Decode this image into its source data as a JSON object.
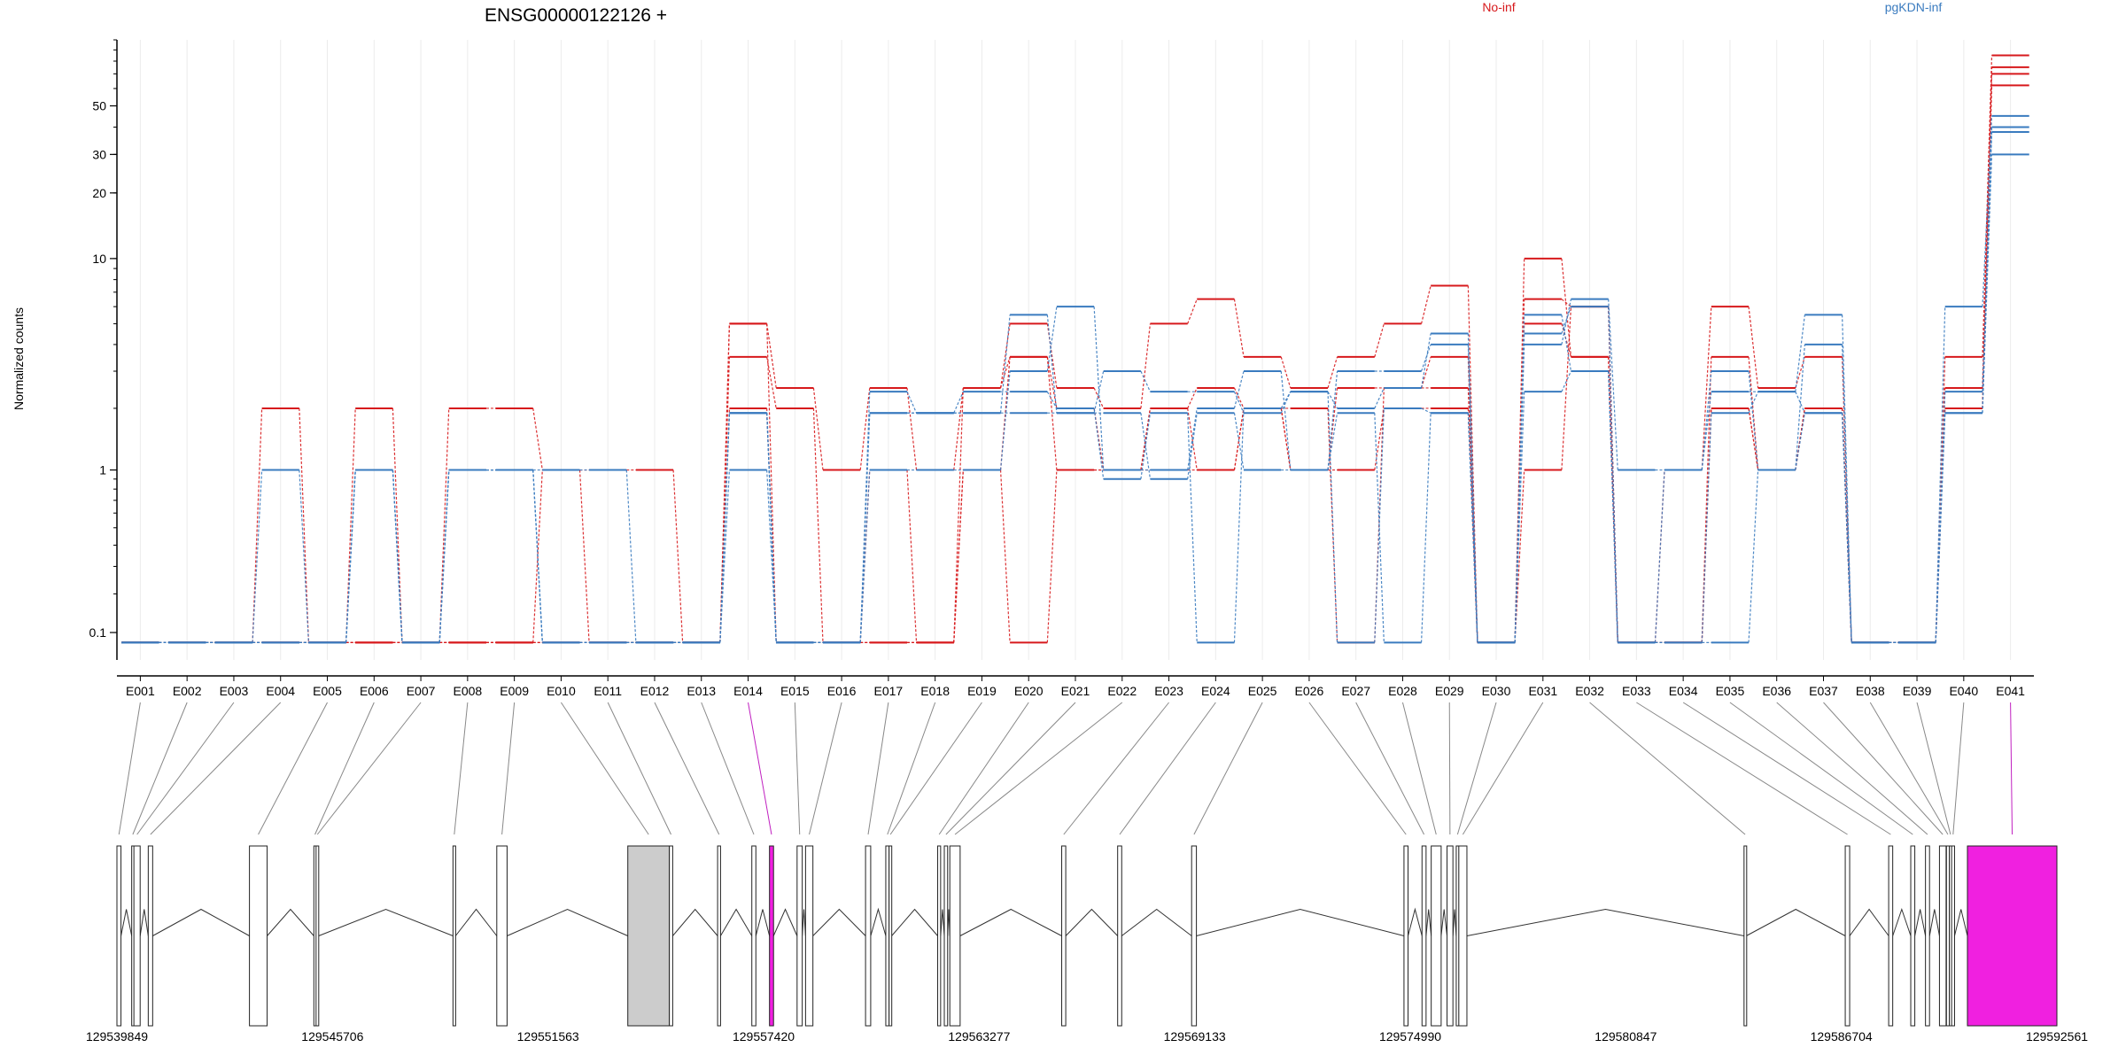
{
  "chart_data": {
    "type": "line",
    "title": "ENSG00000122126 +",
    "ylabel": "Normalized counts",
    "yscale": "log(x+0.1)",
    "ylim": [
      0.05,
      100
    ],
    "yticks": [
      0.1,
      1,
      10,
      20,
      30,
      50
    ],
    "ytick_labels": [
      "0.1",
      "1",
      "10",
      "20",
      "30",
      "50"
    ],
    "x_exons": [
      "E001",
      "E002",
      "E003",
      "E004",
      "E005",
      "E006",
      "E007",
      "E008",
      "E009",
      "E010",
      "E011",
      "E012",
      "E013",
      "E014",
      "E015",
      "E016",
      "E017",
      "E018",
      "E019",
      "E020",
      "E021",
      "E022",
      "E023",
      "E024",
      "E025",
      "E026",
      "E027",
      "E028",
      "E029",
      "E030",
      "E031",
      "E032",
      "E033",
      "E034",
      "E035",
      "E036",
      "E037",
      "E038",
      "E039",
      "E040",
      "E041"
    ],
    "legend": [
      {
        "name": "No-inf",
        "color": "#d7191c"
      },
      {
        "name": "pgKDN-inf",
        "color": "#3a7bbf"
      }
    ],
    "series": [
      {
        "group": "No-inf",
        "values": [
          0.08,
          0.08,
          0.08,
          2.0,
          0.08,
          2.0,
          0.08,
          2.0,
          2.0,
          1.0,
          1.0,
          1.0,
          0.08,
          5.0,
          2.5,
          1.0,
          2.5,
          1.0,
          2.5,
          5.0,
          2.5,
          2.0,
          5.0,
          6.5,
          3.5,
          2.5,
          3.5,
          5.0,
          7.5,
          0.08,
          10.0,
          3.5,
          0.08,
          1.0,
          6.0,
          2.5,
          3.5,
          0.08,
          0.08,
          3.5,
          85
        ]
      },
      {
        "group": "No-inf",
        "values": [
          0.08,
          0.08,
          0.08,
          0.08,
          0.08,
          0.08,
          0.08,
          0.08,
          0.08,
          1.0,
          0.08,
          0.08,
          0.08,
          3.5,
          2.0,
          0.08,
          1.0,
          0.08,
          1.0,
          3.5,
          2.0,
          1.0,
          2.0,
          1.0,
          2.0,
          1.0,
          2.5,
          2.5,
          3.5,
          0.08,
          6.5,
          6.0,
          0.08,
          0.08,
          3.5,
          1.0,
          2.0,
          0.08,
          0.08,
          2.5,
          75
        ]
      },
      {
        "group": "No-inf",
        "values": [
          0.08,
          0.08,
          0.08,
          0.08,
          0.08,
          0.08,
          0.08,
          0.08,
          0.08,
          0.08,
          0.08,
          0.08,
          0.08,
          2.0,
          0.08,
          0.08,
          0.08,
          0.08,
          1.0,
          0.08,
          1.0,
          1.0,
          1.0,
          1.0,
          2.0,
          2.0,
          0.08,
          2.5,
          2.5,
          0.08,
          1.0,
          6.0,
          0.08,
          0.08,
          2.0,
          1.0,
          2.0,
          0.08,
          0.08,
          2.0,
          70
        ]
      },
      {
        "group": "No-inf",
        "values": [
          0.08,
          0.08,
          0.08,
          0.08,
          0.08,
          0.08,
          0.08,
          0.08,
          0.08,
          0.08,
          0.08,
          0.08,
          0.08,
          5.0,
          0.08,
          0.08,
          0.08,
          0.08,
          2.5,
          3.5,
          1.0,
          1.0,
          2.0,
          2.5,
          2.0,
          1.0,
          1.0,
          2.0,
          2.0,
          0.08,
          5.0,
          3.5,
          0.08,
          0.08,
          2.0,
          1.0,
          2.0,
          0.08,
          0.08,
          2.0,
          62
        ]
      },
      {
        "group": "pgKDN-inf",
        "values": [
          0.08,
          0.08,
          0.08,
          1.0,
          0.08,
          1.0,
          0.08,
          1.0,
          1.0,
          1.0,
          1.0,
          0.08,
          0.08,
          1.0,
          0.08,
          0.08,
          1.0,
          1.0,
          1.0,
          3.0,
          6.0,
          1.0,
          1.0,
          2.0,
          3.0,
          1.0,
          3.0,
          3.0,
          4.0,
          0.08,
          4.0,
          6.5,
          1.0,
          1.0,
          3.0,
          1.0,
          4.0,
          0.08,
          0.08,
          6.0,
          45
        ]
      },
      {
        "group": "pgKDN-inf",
        "values": [
          0.08,
          0.08,
          0.08,
          0.08,
          0.08,
          1.0,
          0.08,
          1.0,
          1.0,
          0.08,
          0.08,
          0.08,
          0.08,
          1.9,
          0.08,
          0.08,
          2.4,
          1.9,
          1.9,
          5.5,
          1.9,
          3.0,
          2.4,
          2.4,
          1.9,
          2.4,
          2.0,
          2.5,
          4.5,
          0.08,
          5.5,
          3.0,
          0.08,
          1.0,
          2.4,
          2.4,
          5.5,
          0.08,
          0.08,
          1.9,
          38
        ]
      },
      {
        "group": "pgKDN-inf",
        "values": [
          0.08,
          0.08,
          0.08,
          0.08,
          0.08,
          1.0,
          0.08,
          1.0,
          1.0,
          0.08,
          0.08,
          0.08,
          0.08,
          1.9,
          0.08,
          0.08,
          1.9,
          1.9,
          2.4,
          2.4,
          2.0,
          0.9,
          1.9,
          0.08,
          2.0,
          2.4,
          0.08,
          2.0,
          1.9,
          0.08,
          4.5,
          6.0,
          0.08,
          0.08,
          1.9,
          2.4,
          1.9,
          0.08,
          0.08,
          2.4,
          40
        ]
      },
      {
        "group": "pgKDN-inf",
        "values": [
          0.08,
          0.08,
          0.08,
          0.08,
          0.08,
          1.0,
          0.08,
          1.0,
          1.0,
          0.08,
          0.08,
          0.08,
          0.08,
          1.9,
          0.08,
          0.08,
          1.9,
          1.9,
          1.9,
          1.9,
          1.9,
          1.9,
          0.9,
          1.9,
          1.0,
          1.0,
          1.9,
          0.08,
          1.9,
          0.08,
          2.4,
          3.0,
          0.08,
          0.08,
          0.08,
          1.0,
          1.9,
          0.08,
          0.08,
          1.9,
          30
        ]
      }
    ],
    "genomic_ticks": [
      "129539849",
      "129545706",
      "129551563",
      "129557420",
      "129563277",
      "129569133",
      "129574990",
      "129580847",
      "129586704",
      "129592561"
    ],
    "gene_model": {
      "start": 129539849,
      "end": 129592561,
      "exons": [
        {
          "id": "E001",
          "start": 129539849,
          "end": 129539959,
          "color": "white"
        },
        {
          "id": "E002",
          "start": 129540250,
          "end": 129540310,
          "color": "white"
        },
        {
          "id": "E003",
          "start": 129540310,
          "end": 129540480,
          "color": "white"
        },
        {
          "id": "E004",
          "start": 129540700,
          "end": 129540820,
          "color": "white"
        },
        {
          "id": "E005",
          "start": 129543450,
          "end": 129543930,
          "color": "white"
        },
        {
          "id": "E006",
          "start": 129545200,
          "end": 129545260,
          "color": "white"
        },
        {
          "id": "E007",
          "start": 129545260,
          "end": 129545330,
          "color": "white"
        },
        {
          "id": "E008",
          "start": 129548980,
          "end": 129549050,
          "color": "white"
        },
        {
          "id": "E009",
          "start": 129550170,
          "end": 129550450,
          "color": "white"
        },
        {
          "id": "E010",
          "start": 129553730,
          "end": 129554860,
          "color": "#cccccc"
        },
        {
          "id": "E011",
          "start": 129554860,
          "end": 129554950,
          "color": "white"
        },
        {
          "id": "E012",
          "start": 129556170,
          "end": 129556250,
          "color": "white"
        },
        {
          "id": "E013",
          "start": 129557100,
          "end": 129557210,
          "color": "white"
        },
        {
          "id": "E014",
          "start": 129557580,
          "end": 129557690,
          "color": "magenta"
        },
        {
          "id": "E015",
          "start": 129558330,
          "end": 129558470,
          "color": "white"
        },
        {
          "id": "E016",
          "start": 129558560,
          "end": 129558760,
          "color": "white"
        },
        {
          "id": "E017",
          "start": 129560190,
          "end": 129560330,
          "color": "white"
        },
        {
          "id": "E018",
          "start": 129560740,
          "end": 129560830,
          "color": "white"
        },
        {
          "id": "E019",
          "start": 129560830,
          "end": 129560900,
          "color": "white"
        },
        {
          "id": "E020",
          "start": 129562150,
          "end": 129562230,
          "color": "white"
        },
        {
          "id": "E021",
          "start": 129562330,
          "end": 129562420,
          "color": "white"
        },
        {
          "id": "E022",
          "start": 129562480,
          "end": 129562760,
          "color": "white"
        },
        {
          "id": "E023",
          "start": 129565520,
          "end": 129565630,
          "color": "white"
        },
        {
          "id": "E024",
          "start": 129567040,
          "end": 129567150,
          "color": "white"
        },
        {
          "id": "E025",
          "start": 129569050,
          "end": 129569180,
          "color": "white"
        },
        {
          "id": "E026",
          "start": 129574820,
          "end": 129574930,
          "color": "white"
        },
        {
          "id": "E027",
          "start": 129575310,
          "end": 129575420,
          "color": "white"
        },
        {
          "id": "E028",
          "start": 129575560,
          "end": 129575830,
          "color": "white"
        },
        {
          "id": "E029",
          "start": 129575990,
          "end": 129576150,
          "color": "white"
        },
        {
          "id": "E030",
          "start": 129576240,
          "end": 129576310,
          "color": "white"
        },
        {
          "id": "E031",
          "start": 129576310,
          "end": 129576530,
          "color": "white"
        },
        {
          "id": "E032",
          "start": 129584060,
          "end": 129584120,
          "color": "white"
        },
        {
          "id": "E033",
          "start": 129586810,
          "end": 129586930,
          "color": "white"
        },
        {
          "id": "E034",
          "start": 129587990,
          "end": 129588100,
          "color": "white"
        },
        {
          "id": "E035",
          "start": 129588590,
          "end": 129588700,
          "color": "white"
        },
        {
          "id": "E036",
          "start": 129588990,
          "end": 129589100,
          "color": "white"
        },
        {
          "id": "E037",
          "start": 129589370,
          "end": 129589550,
          "color": "white"
        },
        {
          "id": "E038",
          "start": 129589560,
          "end": 129589640,
          "color": "white"
        },
        {
          "id": "E039",
          "start": 129589640,
          "end": 129589700,
          "color": "white"
        },
        {
          "id": "E040",
          "start": 129589700,
          "end": 129589780,
          "color": "white"
        },
        {
          "id": "E041",
          "start": 129590130,
          "end": 129592561,
          "color": "magenta"
        }
      ]
    }
  }
}
